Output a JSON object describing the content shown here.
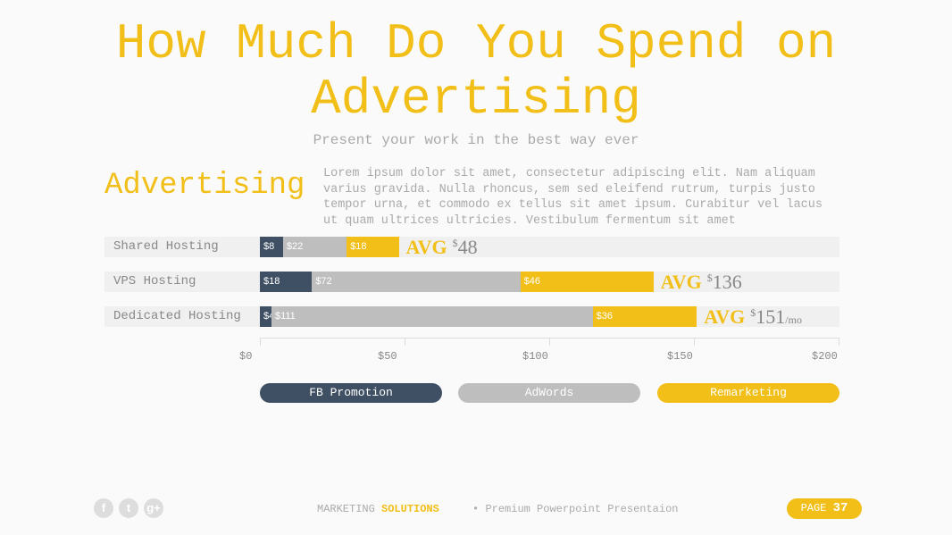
{
  "title": "How Much Do You Spend on Advertising",
  "subtitle": "Present your work in the best way ever",
  "side_heading": "Advertising",
  "body_text": "Lorem ipsum dolor sit amet, consectetur adipiscing elit. Nam aliquam varius gravida. Nulla rhoncus, sem sed eleifend rutrum, turpis justo tempor urna, et commodo ex tellus sit amet ipsum. Curabitur vel lacus ut quam ultrices ultricies. Vestibulum fermentum sit amet",
  "chart_data": {
    "type": "bar",
    "orientation": "horizontal",
    "stacked": true,
    "categories": [
      "Shared Hosting",
      "VPS Hosting",
      "Dedicated Hosting"
    ],
    "series": [
      {
        "name": "FB Promotion",
        "color": "#3f5064",
        "values": [
          8,
          18,
          4
        ],
        "labels": [
          "$8",
          "$18",
          "$4"
        ]
      },
      {
        "name": "AdWords",
        "color": "#bfbebe",
        "values": [
          22,
          72,
          111
        ],
        "labels": [
          "$22",
          "$72",
          "$111"
        ]
      },
      {
        "name": "Remarketing",
        "color": "#f1bf18",
        "values": [
          18,
          46,
          36
        ],
        "labels": [
          "$18",
          "$46",
          "$36"
        ]
      }
    ],
    "avg_label": "AVG",
    "avg": [
      {
        "currency": "$",
        "value": "48",
        "unit": ""
      },
      {
        "currency": "$",
        "value": "136",
        "unit": ""
      },
      {
        "currency": "$",
        "value": "151",
        "unit": "/mo"
      }
    ],
    "xlim": [
      0,
      200
    ],
    "ticks": [
      0,
      50,
      100,
      150,
      200
    ],
    "tick_labels": [
      "$0",
      "$50",
      "$100",
      "$150",
      "$200"
    ]
  },
  "footer": {
    "brand_a": "MARKETING",
    "brand_b": "SOLUTIONS",
    "tagline": "Premium Powerpoint Presentaion",
    "page_label": "PAGE",
    "page_number": "37"
  },
  "social": [
    {
      "icon": "facebook-icon",
      "glyph": "f"
    },
    {
      "icon": "twitter-icon",
      "glyph": "t"
    },
    {
      "icon": "google-plus-icon",
      "glyph": "g+"
    }
  ]
}
